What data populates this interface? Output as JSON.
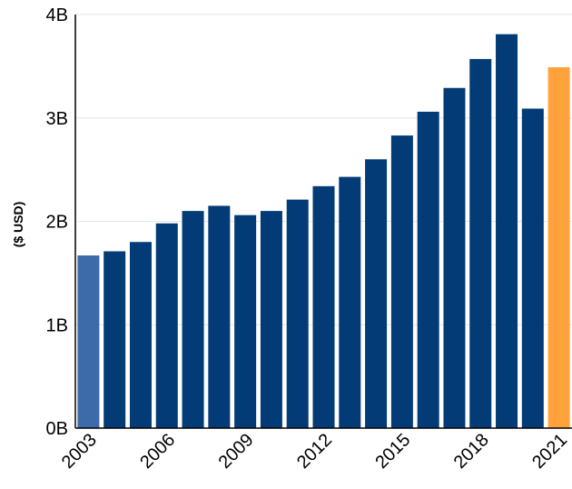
{
  "chart_data": {
    "type": "bar",
    "title": "",
    "xlabel": "",
    "ylabel": "($ USD)",
    "ylim": [
      0,
      4000000000
    ],
    "y_ticks": [
      {
        "value": 0,
        "label": "0B"
      },
      {
        "value": 1000000000,
        "label": "1B"
      },
      {
        "value": 2000000000,
        "label": "2B"
      },
      {
        "value": 3000000000,
        "label": "3B"
      },
      {
        "value": 4000000000,
        "label": "4B"
      }
    ],
    "x_tick_labels": [
      "2003",
      "2006",
      "2009",
      "2012",
      "2015",
      "2018",
      "2021"
    ],
    "grid": "horizontal",
    "legend": "none",
    "categories": [
      "2003",
      "2004",
      "2005",
      "2006",
      "2007",
      "2008",
      "2009",
      "2010",
      "2011",
      "2012",
      "2013",
      "2014",
      "2015",
      "2016",
      "2017",
      "2018",
      "2019",
      "2020",
      "2021"
    ],
    "values": [
      1670000000,
      1710000000,
      1800000000,
      1980000000,
      2100000000,
      2150000000,
      2060000000,
      2100000000,
      2210000000,
      2340000000,
      2430000000,
      2600000000,
      2830000000,
      3060000000,
      3290000000,
      3570000000,
      3810000000,
      3090000000,
      3490000000
    ],
    "colors": {
      "first": "#3d6aa8",
      "default": "#023b76",
      "last": "#ffa23c"
    }
  }
}
